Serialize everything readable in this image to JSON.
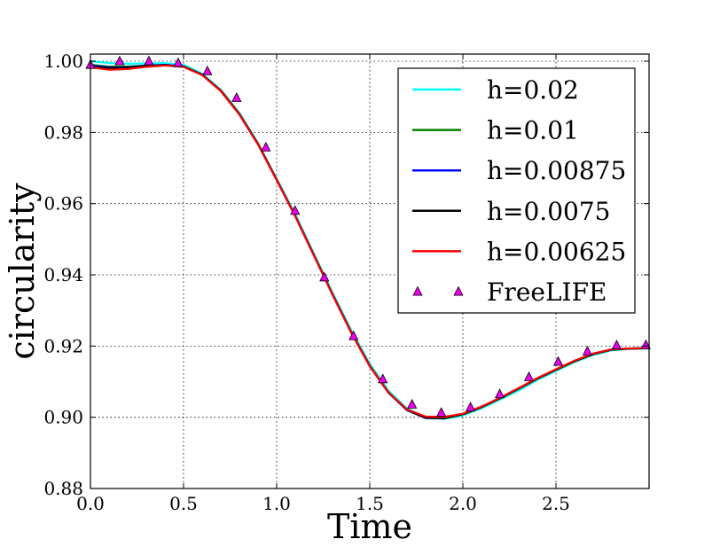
{
  "chart_data": {
    "type": "line",
    "title": "",
    "xlabel": "Time",
    "ylabel": "circularity",
    "xlim": [
      0.0,
      3.0
    ],
    "ylim": [
      0.88,
      1.002
    ],
    "xticks": [
      "0.0",
      "0.5",
      "1.0",
      "1.5",
      "2.0",
      "2.5"
    ],
    "xtick_values": [
      0.0,
      0.5,
      1.0,
      1.5,
      2.0,
      2.5
    ],
    "yticks": [
      "0.88",
      "0.90",
      "0.92",
      "0.94",
      "0.96",
      "0.98",
      "1.00"
    ],
    "ytick_values": [
      0.88,
      0.9,
      0.92,
      0.94,
      0.96,
      0.98,
      1.0
    ],
    "grid": true,
    "legend_position": "top-right",
    "series": [
      {
        "name": "h=0.02",
        "kind": "line",
        "color": "#00ffff",
        "x": [
          0.0,
          0.1,
          0.2,
          0.3,
          0.4,
          0.5,
          0.6,
          0.7,
          0.8,
          0.9,
          1.0,
          1.1,
          1.2,
          1.3,
          1.4,
          1.5,
          1.6,
          1.7,
          1.8,
          1.9,
          2.0,
          2.1,
          2.2,
          2.3,
          2.4,
          2.5,
          2.6,
          2.7,
          2.8,
          2.9,
          3.0
        ],
        "y": [
          1.0,
          0.9995,
          0.9993,
          0.9994,
          0.9995,
          0.999,
          0.9965,
          0.992,
          0.9855,
          0.977,
          0.967,
          0.957,
          0.946,
          0.935,
          0.9245,
          0.915,
          0.9075,
          0.9025,
          0.9,
          0.8995,
          0.9005,
          0.9025,
          0.905,
          0.9075,
          0.9105,
          0.913,
          0.9155,
          0.9175,
          0.9188,
          0.9192,
          0.9193
        ]
      },
      {
        "name": "h=0.01",
        "kind": "line",
        "color": "#008000",
        "x": [
          0.0,
          0.1,
          0.2,
          0.3,
          0.4,
          0.5,
          0.6,
          0.7,
          0.8,
          0.9,
          1.0,
          1.1,
          1.2,
          1.3,
          1.4,
          1.5,
          1.6,
          1.7,
          1.8,
          1.9,
          2.0,
          2.1,
          2.2,
          2.3,
          2.4,
          2.5,
          2.6,
          2.7,
          2.8,
          2.9,
          3.0
        ],
        "y": [
          0.999,
          0.9985,
          0.9985,
          0.9988,
          0.999,
          0.9985,
          0.9962,
          0.9918,
          0.9852,
          0.9768,
          0.9668,
          0.9566,
          0.9456,
          0.9346,
          0.924,
          0.9145,
          0.907,
          0.902,
          0.8998,
          0.8997,
          0.9008,
          0.9028,
          0.9053,
          0.908,
          0.9108,
          0.9133,
          0.9157,
          0.9177,
          0.919,
          0.9193,
          0.9194
        ]
      },
      {
        "name": "h=0.00875",
        "kind": "line",
        "color": "#0000ff",
        "x": [
          0.0,
          0.1,
          0.2,
          0.3,
          0.4,
          0.5,
          0.6,
          0.7,
          0.8,
          0.9,
          1.0,
          1.1,
          1.2,
          1.3,
          1.4,
          1.5,
          1.6,
          1.7,
          1.8,
          1.9,
          2.0,
          2.1,
          2.2,
          2.3,
          2.4,
          2.5,
          2.6,
          2.7,
          2.8,
          2.9,
          3.0
        ],
        "y": [
          0.9988,
          0.9982,
          0.9983,
          0.9987,
          0.999,
          0.9985,
          0.9962,
          0.9917,
          0.9851,
          0.9767,
          0.9667,
          0.9565,
          0.9455,
          0.9345,
          0.9239,
          0.9144,
          0.9069,
          0.902,
          0.8998,
          0.8998,
          0.9009,
          0.9029,
          0.9054,
          0.9081,
          0.9109,
          0.9134,
          0.9158,
          0.9178,
          0.919,
          0.9193,
          0.9194
        ]
      },
      {
        "name": "h=0.0075",
        "kind": "line",
        "color": "#000000",
        "x": [
          0.0,
          0.1,
          0.2,
          0.3,
          0.4,
          0.5,
          0.6,
          0.7,
          0.8,
          0.9,
          1.0,
          1.1,
          1.2,
          1.3,
          1.4,
          1.5,
          1.6,
          1.7,
          1.8,
          1.9,
          2.0,
          2.1,
          2.2,
          2.3,
          2.4,
          2.5,
          2.6,
          2.7,
          2.8,
          2.9,
          3.0
        ],
        "y": [
          0.9985,
          0.998,
          0.9982,
          0.9986,
          0.9989,
          0.9985,
          0.9962,
          0.9917,
          0.9851,
          0.9767,
          0.9667,
          0.9565,
          0.9455,
          0.9345,
          0.9239,
          0.9144,
          0.907,
          0.9021,
          0.8999,
          0.8998,
          0.9009,
          0.9029,
          0.9054,
          0.9081,
          0.9109,
          0.9134,
          0.9158,
          0.9178,
          0.919,
          0.9193,
          0.9194
        ]
      },
      {
        "name": "h=0.00625",
        "kind": "line",
        "color": "#ff0000",
        "x": [
          0.0,
          0.1,
          0.2,
          0.3,
          0.4,
          0.5,
          0.6,
          0.7,
          0.8,
          0.9,
          1.0,
          1.1,
          1.2,
          1.3,
          1.4,
          1.5,
          1.6,
          1.7,
          1.8,
          1.9,
          2.0,
          2.1,
          2.2,
          2.3,
          2.4,
          2.5,
          2.6,
          2.7,
          2.8,
          2.9,
          3.0
        ],
        "y": [
          0.9983,
          0.9976,
          0.9978,
          0.9984,
          0.9988,
          0.9984,
          0.9961,
          0.9916,
          0.985,
          0.9766,
          0.9666,
          0.9564,
          0.9454,
          0.9344,
          0.9238,
          0.9143,
          0.907,
          0.9022,
          0.9002,
          0.9001,
          0.901,
          0.903,
          0.9055,
          0.9082,
          0.911,
          0.9135,
          0.9159,
          0.9179,
          0.9191,
          0.9193,
          0.9194
        ]
      },
      {
        "name": "FreeLIFE",
        "kind": "marker",
        "color": "#ee00ee",
        "x": [
          0.0,
          0.157,
          0.314,
          0.471,
          0.628,
          0.785,
          0.942,
          1.099,
          1.256,
          1.413,
          1.57,
          1.727,
          1.884,
          2.041,
          2.198,
          2.355,
          2.512,
          2.669,
          2.826,
          2.983
        ],
        "y": [
          0.999,
          1.0,
          1.0,
          0.9995,
          0.9972,
          0.9897,
          0.9758,
          0.958,
          0.9393,
          0.9228,
          0.9107,
          0.9036,
          0.9013,
          0.9028,
          0.9065,
          0.9113,
          0.9156,
          0.9185,
          0.9202,
          0.9203
        ]
      }
    ]
  }
}
